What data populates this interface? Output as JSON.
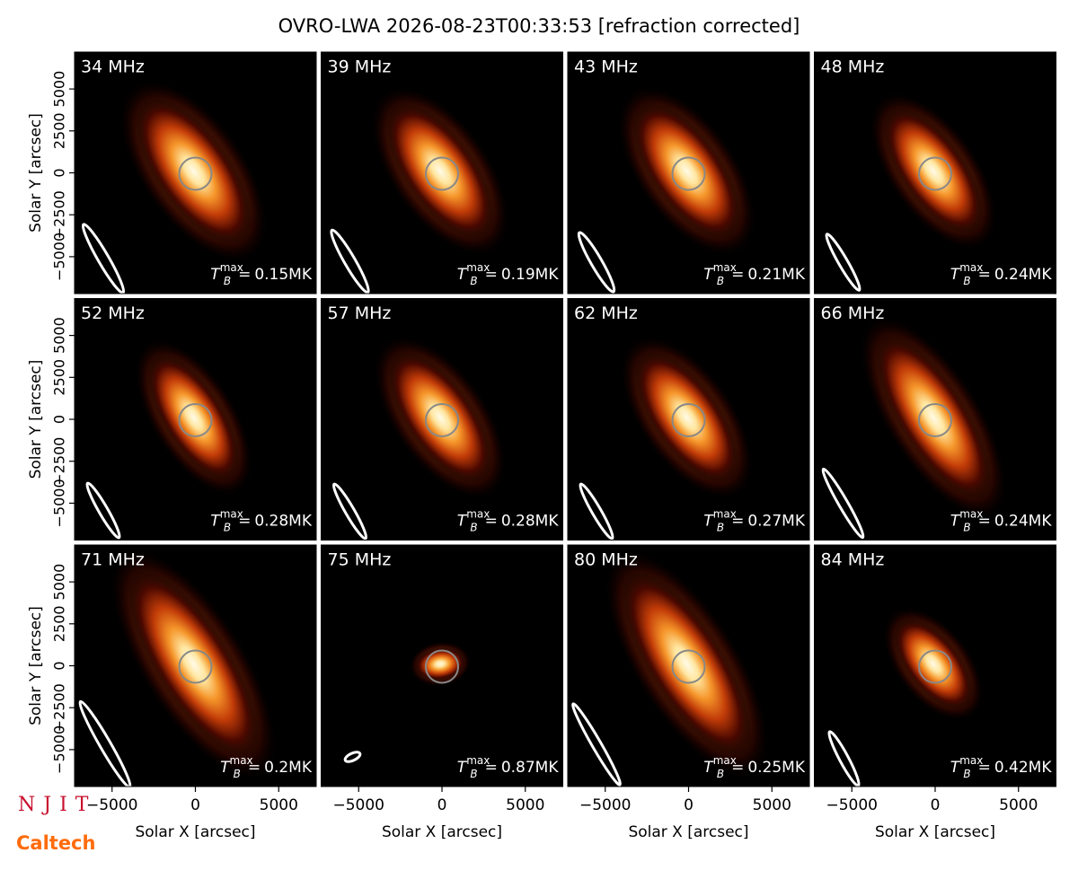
{
  "chart_data": {
    "type": "image-grid",
    "title": "OVRO-LWA 2026-08-23T00:33:53 [refraction corrected]",
    "xlabel": "Solar X [arcsec]",
    "ylabel": "Solar Y [arcsec]",
    "xlim": [
      -7250,
      7250
    ],
    "ylim": [
      -7200,
      7200
    ],
    "xticks": [
      {
        "value": -5000,
        "label": "−5000"
      },
      0,
      5000
    ],
    "yticks": [
      {
        "value": -5000,
        "label": "−5000"
      },
      {
        "value": -2500,
        "label": "−2500"
      },
      0,
      2500,
      5000
    ],
    "tb_label": {
      "base": "T",
      "sub": "B",
      "sup": "max",
      "eq": "="
    },
    "panels": [
      {
        "frequency": "34 MHz",
        "tb_max": "0.15MK"
      },
      {
        "frequency": "39 MHz",
        "tb_max": "0.19MK"
      },
      {
        "frequency": "43 MHz",
        "tb_max": "0.21MK"
      },
      {
        "frequency": "48 MHz",
        "tb_max": "0.24MK"
      },
      {
        "frequency": "52 MHz",
        "tb_max": "0.28MK"
      },
      {
        "frequency": "57 MHz",
        "tb_max": "0.28MK"
      },
      {
        "frequency": "62 MHz",
        "tb_max": "0.27MK"
      },
      {
        "frequency": "66 MHz",
        "tb_max": "0.24MK"
      },
      {
        "frequency": "71 MHz",
        "tb_max": "0.2MK"
      },
      {
        "frequency": "75 MHz",
        "tb_max": "0.87MK"
      },
      {
        "frequency": "80 MHz",
        "tb_max": "0.25MK"
      },
      {
        "frequency": "84 MHz",
        "tb_max": "0.42MK"
      }
    ],
    "logos": [
      "NJIT",
      "Caltech"
    ]
  }
}
